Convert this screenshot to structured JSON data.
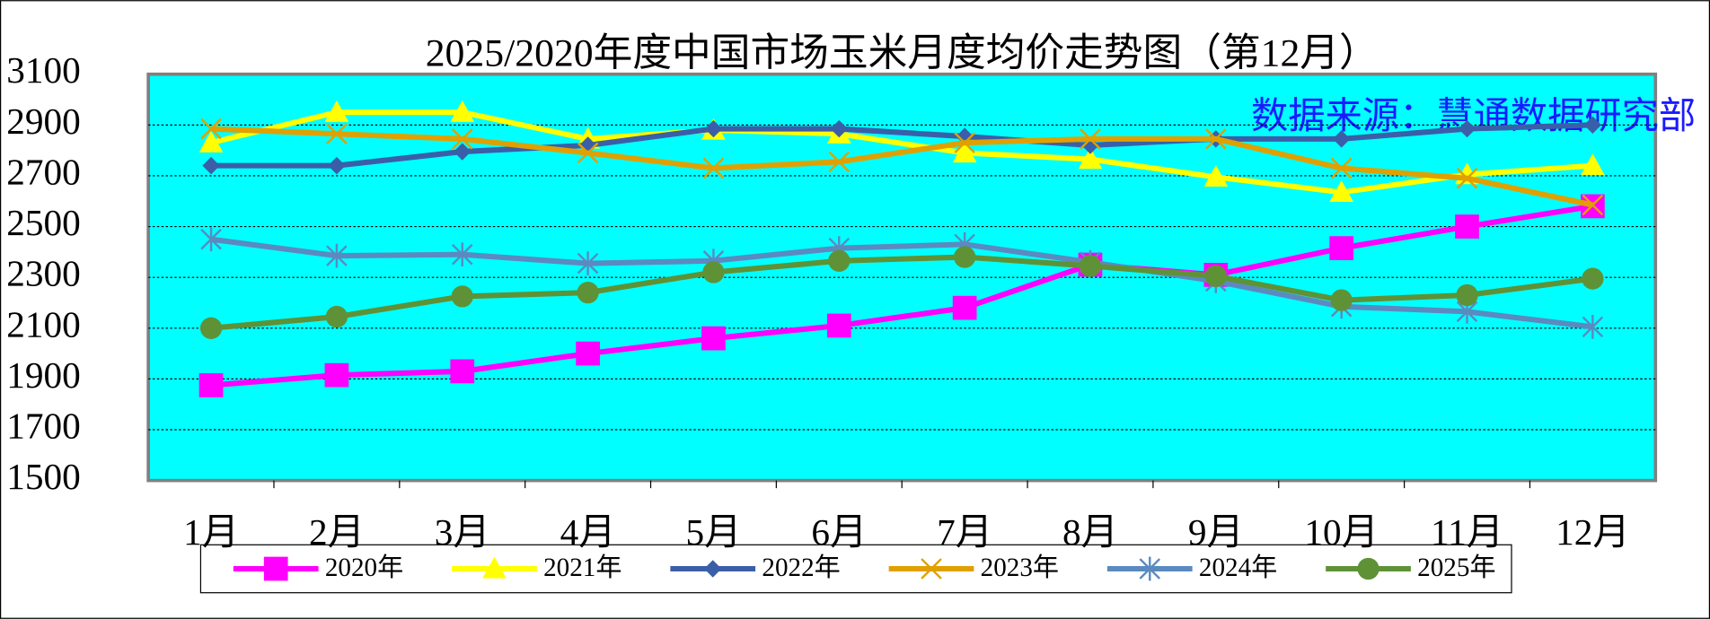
{
  "chart_data": {
    "type": "line",
    "title": "2025/2020年度中国市场玉米月度均价走势图（第12月）",
    "annotation": "数据来源：慧通数据研究部",
    "categories": [
      "1月",
      "2月",
      "3月",
      "4月",
      "5月",
      "6月",
      "7月",
      "8月",
      "9月",
      "10月",
      "11月",
      "12月"
    ],
    "ylim": [
      1500,
      3100
    ],
    "yticks": [
      1500,
      1700,
      1900,
      2100,
      2300,
      2500,
      2700,
      2900,
      3100
    ],
    "grid": true,
    "legend": "bottom",
    "series": [
      {
        "name": "2020年",
        "color": "#ff00ff",
        "marker": "square",
        "values": [
          1875,
          1915,
          1930,
          2000,
          2060,
          2110,
          2180,
          2350,
          2310,
          2415,
          2500,
          2580
        ]
      },
      {
        "name": "2021年",
        "color": "#ffff00",
        "marker": "triangle",
        "values": [
          2830,
          2950,
          2950,
          2845,
          2880,
          2865,
          2790,
          2765,
          2695,
          2635,
          2705,
          2740
        ]
      },
      {
        "name": "2022年",
        "color": "#3a5fa8",
        "marker": "diamond",
        "values": [
          2740,
          2740,
          2795,
          2820,
          2885,
          2885,
          2855,
          2820,
          2845,
          2845,
          2885,
          2900
        ]
      },
      {
        "name": "2023年",
        "color": "#e0a000",
        "marker": "x",
        "values": [
          2885,
          2865,
          2845,
          2790,
          2730,
          2755,
          2830,
          2845,
          2845,
          2730,
          2690,
          2585
        ]
      },
      {
        "name": "2024年",
        "color": "#5b8ac0",
        "marker": "star",
        "values": [
          2450,
          2385,
          2390,
          2355,
          2365,
          2415,
          2430,
          2360,
          2285,
          2185,
          2165,
          2105
        ]
      },
      {
        "name": "2025年",
        "color": "#5f9236",
        "marker": "circle",
        "values": [
          2100,
          2145,
          2225,
          2240,
          2320,
          2365,
          2380,
          2345,
          2305,
          2210,
          2230,
          2295
        ]
      }
    ]
  }
}
